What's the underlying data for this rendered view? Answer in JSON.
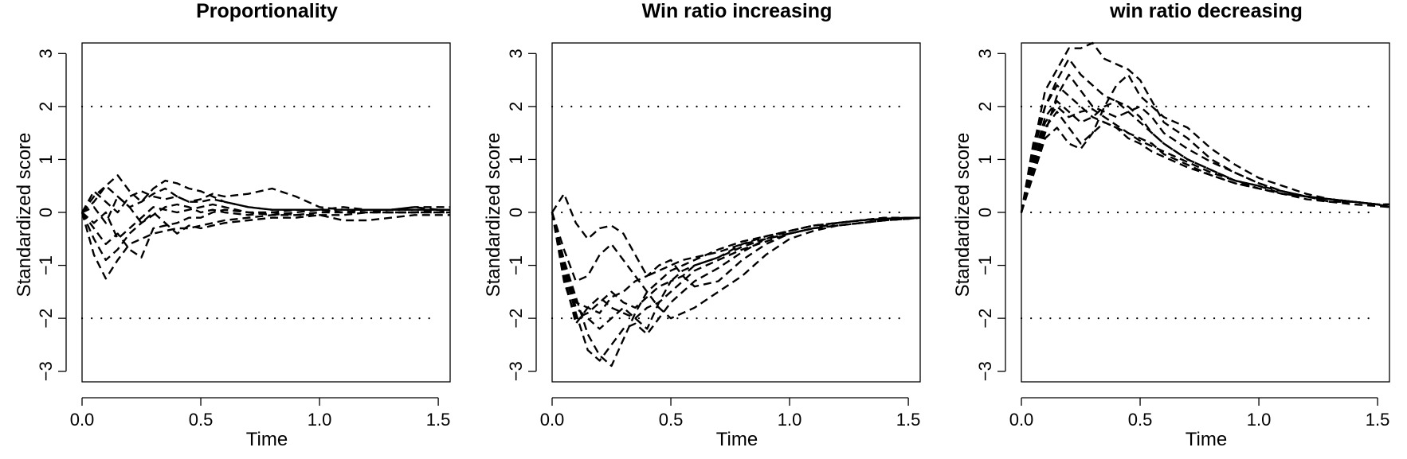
{
  "chart_data": [
    {
      "type": "line",
      "title": "Proportionality",
      "xlabel": "Time",
      "ylabel": "Standardized score",
      "xlim": [
        0,
        1.55
      ],
      "ylim": [
        -3.2,
        3.2
      ],
      "xticks": [
        "0.0",
        "0.5",
        "1.0",
        "1.5"
      ],
      "yticks": [
        "−3",
        "−2",
        "−1",
        "0",
        "1",
        "2",
        "3"
      ],
      "reference_lines": [
        2,
        -2
      ],
      "line_style": "dashed",
      "ref_line_style": "dotted",
      "x": [
        0.0,
        0.05,
        0.1,
        0.15,
        0.2,
        0.25,
        0.3,
        0.35,
        0.4,
        0.45,
        0.5,
        0.55,
        0.6,
        0.7,
        0.8,
        0.9,
        1.0,
        1.1,
        1.2,
        1.3,
        1.4,
        1.5,
        1.55
      ],
      "series": [
        {
          "values": [
            0.0,
            0.3,
            0.5,
            0.7,
            0.4,
            0.2,
            0.45,
            0.6,
            0.55,
            0.45,
            0.4,
            0.3,
            0.2,
            0.1,
            0.05,
            0.05,
            0.05,
            0.05,
            0.05,
            0.05,
            0.05,
            0.05,
            0.05
          ]
        },
        {
          "values": [
            0.0,
            -0.8,
            -1.25,
            -0.9,
            -0.6,
            -0.5,
            -0.4,
            -0.35,
            -0.3,
            -0.3,
            -0.25,
            -0.2,
            -0.15,
            -0.1,
            -0.05,
            -0.05,
            -0.05,
            -0.05,
            0.0,
            0.0,
            0.0,
            0.0,
            0.0
          ]
        },
        {
          "values": [
            0.0,
            0.4,
            0.2,
            0.0,
            0.3,
            0.4,
            0.3,
            0.25,
            0.3,
            0.2,
            0.2,
            0.25,
            0.2,
            0.1,
            0.05,
            0.05,
            0.05,
            0.1,
            0.05,
            0.05,
            0.05,
            0.05,
            0.05
          ]
        },
        {
          "values": [
            0.0,
            -0.3,
            -0.6,
            -0.4,
            -0.7,
            -0.85,
            -0.3,
            -0.25,
            -0.2,
            -0.1,
            -0.1,
            0.0,
            0.05,
            0.0,
            0.0,
            -0.05,
            0.0,
            0.0,
            0.0,
            0.0,
            0.0,
            0.0,
            0.0
          ]
        },
        {
          "values": [
            0.0,
            0.1,
            -0.2,
            0.3,
            0.1,
            -0.2,
            0.0,
            -0.2,
            -0.4,
            -0.25,
            -0.3,
            -0.25,
            -0.2,
            -0.15,
            -0.1,
            -0.1,
            -0.05,
            -0.15,
            -0.15,
            -0.1,
            -0.05,
            -0.05,
            -0.05
          ]
        },
        {
          "values": [
            0.0,
            0.2,
            0.5,
            0.3,
            0.1,
            0.2,
            0.35,
            0.45,
            0.3,
            0.2,
            0.25,
            0.35,
            0.3,
            0.35,
            0.45,
            0.3,
            0.1,
            0.05,
            0.05,
            0.05,
            0.1,
            0.05,
            0.05
          ]
        },
        {
          "values": [
            0.0,
            -0.2,
            0.0,
            -0.5,
            -0.3,
            -0.1,
            0.1,
            0.05,
            0.0,
            0.05,
            0.1,
            0.15,
            0.1,
            0.0,
            -0.05,
            0.0,
            0.05,
            0.0,
            0.05,
            0.0,
            0.0,
            0.05,
            0.0
          ]
        },
        {
          "values": [
            0.0,
            -0.5,
            -0.9,
            -0.7,
            -0.4,
            -0.2,
            -0.05,
            0.1,
            0.15,
            0.1,
            0.0,
            0.05,
            0.0,
            -0.05,
            0.0,
            0.05,
            0.05,
            0.0,
            0.05,
            0.05,
            0.1,
            0.1,
            0.1
          ]
        }
      ]
    },
    {
      "type": "line",
      "title": "Win ratio increasing",
      "xlabel": "Time",
      "ylabel": "Standardized score",
      "xlim": [
        0,
        1.55
      ],
      "ylim": [
        -3.2,
        3.2
      ],
      "xticks": [
        "0.0",
        "0.5",
        "1.0",
        "1.5"
      ],
      "yticks": [
        "−3",
        "−2",
        "−1",
        "0",
        "1",
        "2",
        "3"
      ],
      "reference_lines": [
        2,
        0,
        -2
      ],
      "line_style": "dashed",
      "ref_line_style": "dotted",
      "x": [
        0.0,
        0.05,
        0.1,
        0.15,
        0.2,
        0.25,
        0.3,
        0.35,
        0.4,
        0.45,
        0.5,
        0.55,
        0.6,
        0.7,
        0.8,
        0.9,
        1.0,
        1.1,
        1.2,
        1.3,
        1.4,
        1.5,
        1.55
      ],
      "series": [
        {
          "values": [
            0.0,
            0.35,
            -0.2,
            -0.5,
            -0.3,
            -0.25,
            -0.4,
            -0.8,
            -1.2,
            -1.1,
            -1.0,
            -0.9,
            -0.85,
            -0.75,
            -0.6,
            -0.5,
            -0.4,
            -0.3,
            -0.2,
            -0.15,
            -0.12,
            -0.1,
            -0.1
          ]
        },
        {
          "values": [
            0.0,
            -0.9,
            -1.6,
            -2.3,
            -2.7,
            -2.9,
            -2.4,
            -1.9,
            -1.5,
            -1.3,
            -1.1,
            -1.0,
            -0.9,
            -0.7,
            -0.55,
            -0.45,
            -0.35,
            -0.25,
            -0.2,
            -0.15,
            -0.1,
            -0.1,
            -0.1
          ]
        },
        {
          "values": [
            0.0,
            -1.0,
            -1.8,
            -2.0,
            -2.2,
            -2.0,
            -1.8,
            -2.0,
            -2.2,
            -1.7,
            -1.3,
            -1.2,
            -1.0,
            -0.85,
            -0.65,
            -0.5,
            -0.4,
            -0.3,
            -0.2,
            -0.15,
            -0.12,
            -0.1,
            -0.1
          ]
        },
        {
          "values": [
            0.0,
            -1.2,
            -2.1,
            -1.8,
            -1.6,
            -1.8,
            -1.9,
            -2.0,
            -1.8,
            -1.7,
            -1.5,
            -1.3,
            -1.1,
            -0.9,
            -0.7,
            -0.55,
            -0.4,
            -0.3,
            -0.25,
            -0.2,
            -0.15,
            -0.12,
            -0.1
          ]
        },
        {
          "values": [
            0.0,
            -1.1,
            -1.9,
            -2.6,
            -2.8,
            -2.5,
            -2.2,
            -2.1,
            -2.3,
            -2.0,
            -1.7,
            -1.5,
            -1.3,
            -1.05,
            -0.75,
            -0.5,
            -0.35,
            -0.25,
            -0.2,
            -0.15,
            -0.1,
            -0.1,
            -0.1
          ]
        },
        {
          "values": [
            0.0,
            -1.0,
            -1.7,
            -1.8,
            -1.9,
            -1.6,
            -1.5,
            -1.3,
            -1.2,
            -1.0,
            -0.9,
            -1.2,
            -1.4,
            -1.3,
            -0.9,
            -0.6,
            -0.4,
            -0.3,
            -0.25,
            -0.2,
            -0.15,
            -0.12,
            -0.1
          ]
        },
        {
          "values": [
            0.0,
            -0.7,
            -1.3,
            -1.2,
            -0.8,
            -0.6,
            -0.9,
            -1.2,
            -1.5,
            -1.8,
            -2.0,
            -1.9,
            -1.8,
            -1.5,
            -1.2,
            -0.8,
            -0.5,
            -0.35,
            -0.25,
            -0.2,
            -0.15,
            -0.12,
            -0.1
          ]
        },
        {
          "values": [
            0.0,
            -1.3,
            -2.0,
            -1.9,
            -1.7,
            -1.5,
            -1.7,
            -1.8,
            -1.6,
            -1.4,
            -1.3,
            -1.1,
            -1.0,
            -0.85,
            -0.6,
            -0.45,
            -0.35,
            -0.25,
            -0.2,
            -0.15,
            -0.12,
            -0.1,
            -0.1
          ]
        }
      ]
    },
    {
      "type": "line",
      "title": "win ratio decreasing",
      "xlabel": "Time",
      "ylabel": "Standardized score",
      "xlim": [
        0,
        1.55
      ],
      "ylim": [
        -3.2,
        3.2
      ],
      "xticks": [
        "0.0",
        "0.5",
        "1.0",
        "1.5"
      ],
      "yticks": [
        "−3",
        "−2",
        "−1",
        "0",
        "1",
        "2",
        "3"
      ],
      "reference_lines": [
        2,
        0,
        -2
      ],
      "line_style": "dashed",
      "ref_line_style": "dotted",
      "x": [
        0.0,
        0.05,
        0.1,
        0.15,
        0.2,
        0.25,
        0.3,
        0.35,
        0.4,
        0.45,
        0.5,
        0.55,
        0.6,
        0.7,
        0.8,
        0.9,
        1.0,
        1.1,
        1.2,
        1.3,
        1.4,
        1.5,
        1.55
      ],
      "series": [
        {
          "values": [
            0.0,
            1.2,
            2.3,
            2.7,
            3.1,
            3.1,
            3.2,
            2.9,
            2.8,
            2.7,
            2.5,
            2.1,
            1.7,
            1.4,
            1.0,
            0.75,
            0.55,
            0.4,
            0.3,
            0.25,
            0.2,
            0.15,
            0.15
          ]
        },
        {
          "values": [
            0.0,
            0.8,
            1.5,
            2.2,
            2.6,
            2.3,
            2.0,
            1.9,
            1.8,
            1.9,
            2.0,
            1.8,
            1.5,
            1.2,
            0.95,
            0.75,
            0.55,
            0.4,
            0.3,
            0.25,
            0.2,
            0.15,
            0.15
          ]
        },
        {
          "values": [
            0.0,
            1.0,
            1.8,
            2.1,
            1.9,
            1.7,
            1.8,
            2.0,
            2.1,
            2.0,
            1.8,
            1.5,
            1.3,
            1.0,
            0.8,
            0.6,
            0.45,
            0.35,
            0.3,
            0.2,
            0.2,
            0.15,
            0.1
          ]
        },
        {
          "values": [
            0.0,
            0.9,
            1.6,
            1.9,
            1.6,
            1.3,
            1.5,
            1.7,
            1.6,
            1.5,
            1.4,
            1.3,
            1.1,
            0.9,
            0.7,
            0.55,
            0.45,
            0.35,
            0.25,
            0.2,
            0.15,
            0.12,
            0.1
          ]
        },
        {
          "values": [
            0.0,
            1.1,
            2.0,
            2.4,
            2.2,
            2.0,
            1.8,
            1.7,
            1.6,
            1.4,
            1.3,
            1.15,
            1.05,
            0.85,
            0.7,
            0.55,
            0.45,
            0.35,
            0.3,
            0.25,
            0.2,
            0.15,
            0.1
          ]
        },
        {
          "values": [
            0.0,
            0.7,
            1.4,
            1.6,
            1.3,
            1.2,
            1.5,
            2.0,
            2.4,
            2.6,
            2.2,
            2.0,
            1.8,
            1.6,
            1.2,
            0.9,
            0.65,
            0.5,
            0.35,
            0.25,
            0.2,
            0.15,
            0.1
          ]
        },
        {
          "values": [
            0.0,
            1.3,
            2.0,
            2.5,
            2.9,
            2.6,
            2.4,
            2.2,
            2.1,
            1.9,
            1.7,
            1.5,
            1.3,
            1.0,
            0.8,
            0.6,
            0.5,
            0.35,
            0.3,
            0.2,
            0.2,
            0.15,
            0.1
          ]
        },
        {
          "values": [
            0.0,
            0.85,
            1.7,
            2.0,
            1.8,
            1.9,
            1.95,
            1.8,
            1.65,
            1.5,
            1.35,
            1.25,
            1.15,
            0.95,
            0.75,
            0.6,
            0.5,
            0.4,
            0.3,
            0.25,
            0.2,
            0.15,
            0.1
          ]
        }
      ]
    }
  ]
}
